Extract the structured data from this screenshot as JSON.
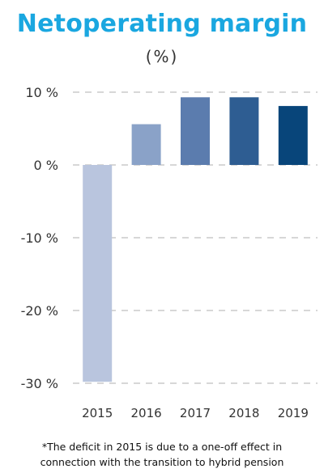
{
  "chart_data": {
    "type": "bar",
    "title": "Netoperating margin",
    "subtitle": "(%)",
    "categories": [
      "2015",
      "2016",
      "2017",
      "2018",
      "2019"
    ],
    "values": [
      -29.8,
      5.6,
      9.3,
      9.3,
      8.1
    ],
    "unit": "%",
    "yticks": [
      10,
      0,
      -10,
      -20,
      -30
    ],
    "ytick_labels": [
      "10 %",
      "0 %",
      "-10 %",
      "-20 %",
      "-30 %"
    ],
    "ylim": [
      -30,
      10
    ],
    "grid": true,
    "legend": "none",
    "bar_colors": [
      "#b9c5de",
      "#8aa2c8",
      "#5b7cae",
      "#2e5d92",
      "#08457a"
    ]
  },
  "footnote": {
    "line1": "*The deficit in 2015 is due to a one-off effect in",
    "line2": "connection with the transition to hybrid pension"
  },
  "colors": {
    "title": "#1aa7e0",
    "grid": "#bfbfbf",
    "text": "#333333"
  }
}
